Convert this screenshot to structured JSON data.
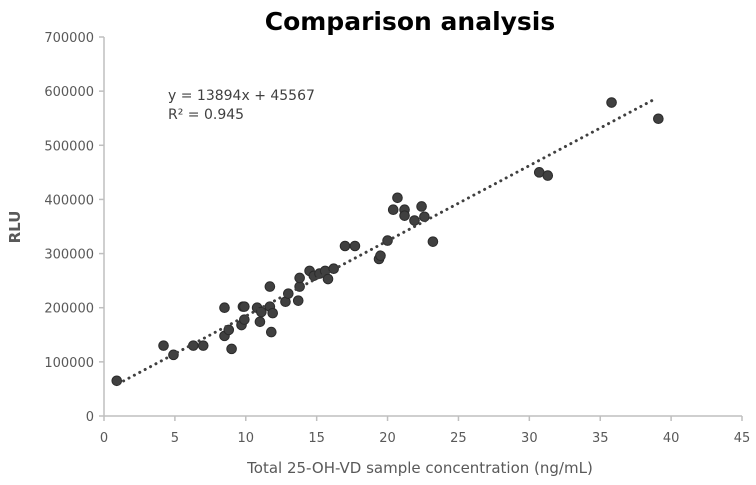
{
  "chart_data": {
    "type": "scatter",
    "title": "Comparison analysis",
    "xlabel": "Total 25-OH-VD sample concentration (ng/mL)",
    "ylabel": "RLU",
    "xlim": [
      0,
      45
    ],
    "ylim": [
      0,
      700000
    ],
    "xticks": [
      0,
      5,
      10,
      15,
      20,
      25,
      30,
      35,
      40,
      45
    ],
    "yticks": [
      0,
      100000,
      200000,
      300000,
      400000,
      500000,
      600000,
      700000
    ],
    "grid": false,
    "legend": "none",
    "marker_color": "#404040",
    "trendline": {
      "type": "linear",
      "slope": 13894,
      "intercept": 45567,
      "x_range": [
        1,
        39
      ],
      "style": "dotted",
      "equation_label": "y = 13894x + 45567",
      "r2_label": "R² = 0.945"
    },
    "points": [
      [
        0.9,
        65000
      ],
      [
        4.2,
        130000
      ],
      [
        4.9,
        113000
      ],
      [
        6.3,
        130000
      ],
      [
        7.0,
        130000
      ],
      [
        8.5,
        200000
      ],
      [
        8.5,
        148000
      ],
      [
        8.8,
        159000
      ],
      [
        9.0,
        124000
      ],
      [
        9.7,
        168000
      ],
      [
        9.8,
        202000
      ],
      [
        9.9,
        202000
      ],
      [
        9.9,
        178000
      ],
      [
        10.8,
        200000
      ],
      [
        11.0,
        174000
      ],
      [
        11.1,
        192000
      ],
      [
        11.7,
        239000
      ],
      [
        11.7,
        202000
      ],
      [
        11.8,
        155000
      ],
      [
        11.9,
        190000
      ],
      [
        12.8,
        211000
      ],
      [
        13.0,
        226000
      ],
      [
        13.7,
        213000
      ],
      [
        13.8,
        239000
      ],
      [
        13.8,
        255000
      ],
      [
        14.5,
        268000
      ],
      [
        14.8,
        259000
      ],
      [
        15.2,
        263000
      ],
      [
        15.6,
        268000
      ],
      [
        15.8,
        253000
      ],
      [
        16.2,
        272000
      ],
      [
        17.0,
        314000
      ],
      [
        17.7,
        314000
      ],
      [
        19.4,
        290000
      ],
      [
        19.5,
        296000
      ],
      [
        20.0,
        324000
      ],
      [
        20.4,
        381000
      ],
      [
        20.7,
        403000
      ],
      [
        21.2,
        381000
      ],
      [
        21.2,
        370000
      ],
      [
        21.9,
        361000
      ],
      [
        22.4,
        387000
      ],
      [
        22.6,
        368000
      ],
      [
        23.2,
        322000
      ],
      [
        30.7,
        450000
      ],
      [
        31.3,
        444000
      ],
      [
        35.8,
        579000
      ],
      [
        39.1,
        549000
      ]
    ]
  }
}
